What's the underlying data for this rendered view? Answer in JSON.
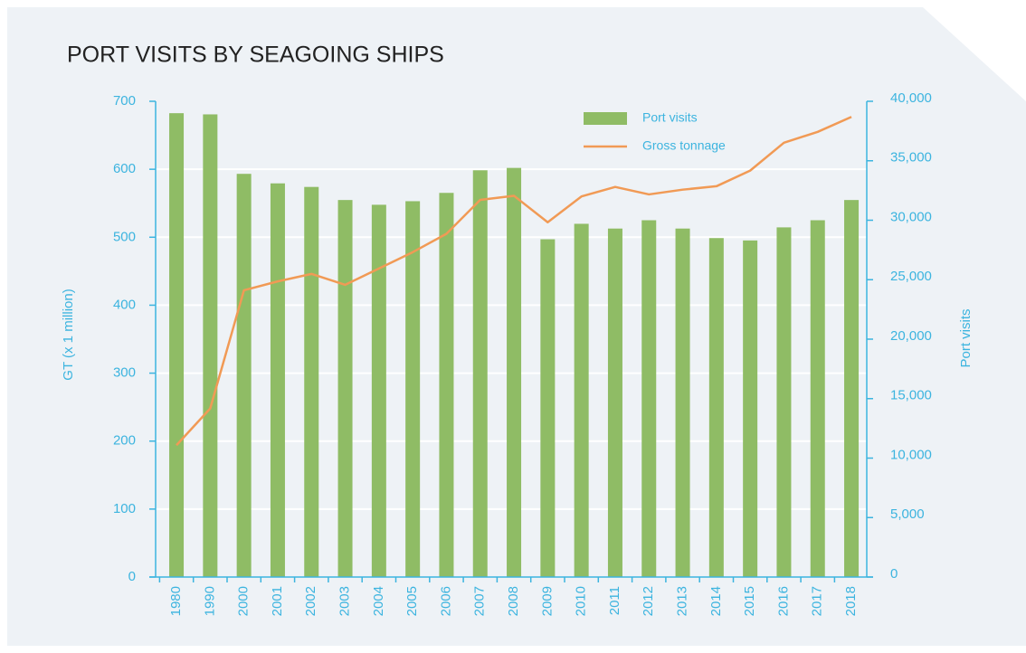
{
  "chart_data": {
    "type": "bar_line",
    "title": "PORT VISITS BY SEAGOING SHIPS",
    "y_label": "GT (x 1 million)",
    "y2_label": "Port visits",
    "categories": [
      "1980",
      "1990",
      "2000",
      "2001",
      "2002",
      "2003",
      "2004",
      "2005",
      "2006",
      "2007",
      "2008",
      "2009",
      "2010",
      "2011",
      "2012",
      "2013",
      "2014",
      "2015",
      "2016",
      "2017",
      "2018"
    ],
    "series": [
      {
        "name": "Port visits",
        "type": "bar",
        "axis": "y2",
        "color": "#8fbc65",
        "values": [
          39000,
          38900,
          33900,
          33100,
          32800,
          31700,
          31300,
          31600,
          32300,
          34200,
          34400,
          28400,
          29700,
          29300,
          30000,
          29300,
          28500,
          28300,
          29400,
          30000,
          31700
        ]
      },
      {
        "name": "Gross tonnage",
        "type": "line",
        "axis": "y",
        "color": "#f19a55",
        "values": [
          194,
          248,
          422,
          435,
          446,
          430,
          454,
          478,
          505,
          555,
          561,
          522,
          560,
          574,
          563,
          570,
          575,
          598,
          639,
          655,
          677
        ]
      }
    ],
    "ylim": [
      0,
      700
    ],
    "yticks": [
      0,
      100,
      200,
      300,
      400,
      500,
      600,
      700
    ],
    "y2lim": [
      0,
      40000
    ],
    "y2ticks": [
      0,
      {
        "value": 5000,
        "label": "5,000"
      },
      {
        "value": 10000,
        "label": "10,000"
      },
      {
        "value": 15000,
        "label": "15,000"
      },
      {
        "value": 20000,
        "label": "20,000"
      },
      {
        "value": 25000,
        "label": "25,000"
      },
      {
        "value": 30000,
        "label": "30,000"
      },
      {
        "value": 35000,
        "label": "35,000"
      },
      {
        "value": 40000,
        "label": "40,000"
      }
    ],
    "grid": true,
    "legend": "top-right"
  }
}
